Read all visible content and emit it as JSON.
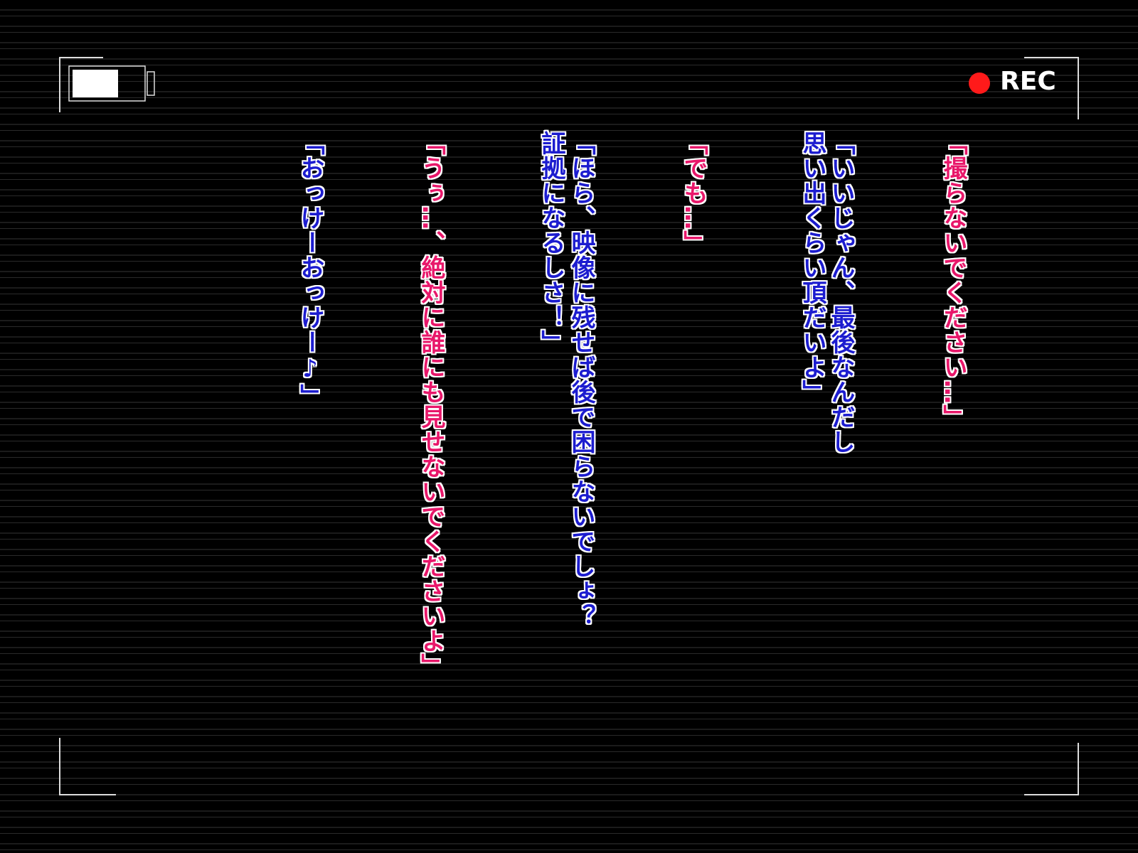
{
  "recording": {
    "label": "REC",
    "indicator_color": "#ff1a1a"
  },
  "dialogue": [
    {
      "columns": [
        "「撮らないでください…」"
      ],
      "color": "#e8176a"
    },
    {
      "columns": [
        "「いいじゃん、最後なんだし",
        "思い出くらい頂だいよ」"
      ],
      "color": "#1c1ccf"
    },
    {
      "columns": [
        "「でも…」"
      ],
      "color": "#e8176a"
    },
    {
      "columns": [
        "「ほら、映像に残せば後で困らないでしょ？",
        "証拠になるしさ！」"
      ],
      "color": "#1c1ccf"
    },
    {
      "columns": [
        "「うぅ…、絶対に誰にも見せないでくださいよ」"
      ],
      "color": "#e8176a"
    },
    {
      "columns": [
        "「おっけーおっけー♪」"
      ],
      "color": "#1c1ccf"
    }
  ]
}
